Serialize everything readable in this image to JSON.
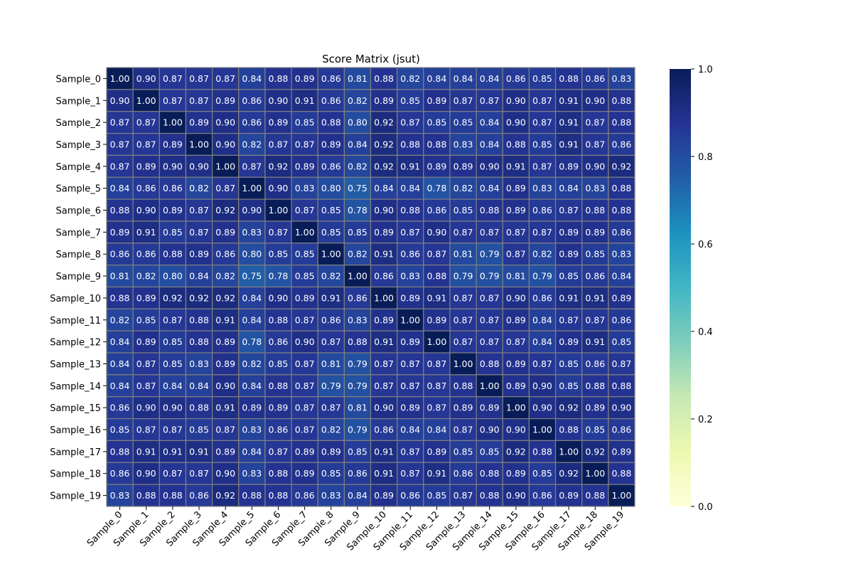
{
  "chart_data": {
    "type": "heatmap",
    "title": "Score Matrix (jsut)",
    "xlabel": "",
    "ylabel": "",
    "rows": [
      "Sample_0",
      "Sample_1",
      "Sample_2",
      "Sample_3",
      "Sample_4",
      "Sample_5",
      "Sample_6",
      "Sample_7",
      "Sample_8",
      "Sample_9",
      "Sample_10",
      "Sample_11",
      "Sample_12",
      "Sample_13",
      "Sample_14",
      "Sample_15",
      "Sample_16",
      "Sample_17",
      "Sample_18",
      "Sample_19"
    ],
    "columns": [
      "Sample_0",
      "Sample_1",
      "Sample_2",
      "Sample_3",
      "Sample_4",
      "Sample_5",
      "Sample_6",
      "Sample_7",
      "Sample_8",
      "Sample_9",
      "Sample_10",
      "Sample_11",
      "Sample_12",
      "Sample_13",
      "Sample_14",
      "Sample_15",
      "Sample_16",
      "Sample_17",
      "Sample_18",
      "Sample_19"
    ],
    "values": [
      [
        1.0,
        0.9,
        0.87,
        0.87,
        0.87,
        0.84,
        0.88,
        0.89,
        0.86,
        0.81,
        0.88,
        0.82,
        0.84,
        0.84,
        0.84,
        0.86,
        0.85,
        0.88,
        0.86,
        0.83
      ],
      [
        0.9,
        1.0,
        0.87,
        0.87,
        0.89,
        0.86,
        0.9,
        0.91,
        0.86,
        0.82,
        0.89,
        0.85,
        0.89,
        0.87,
        0.87,
        0.9,
        0.87,
        0.91,
        0.9,
        0.88
      ],
      [
        0.87,
        0.87,
        1.0,
        0.89,
        0.9,
        0.86,
        0.89,
        0.85,
        0.88,
        0.8,
        0.92,
        0.87,
        0.85,
        0.85,
        0.84,
        0.9,
        0.87,
        0.91,
        0.87,
        0.88
      ],
      [
        0.87,
        0.87,
        0.89,
        1.0,
        0.9,
        0.82,
        0.87,
        0.87,
        0.89,
        0.84,
        0.92,
        0.88,
        0.88,
        0.83,
        0.84,
        0.88,
        0.85,
        0.91,
        0.87,
        0.86
      ],
      [
        0.87,
        0.89,
        0.9,
        0.9,
        1.0,
        0.87,
        0.92,
        0.89,
        0.86,
        0.82,
        0.92,
        0.91,
        0.89,
        0.89,
        0.9,
        0.91,
        0.87,
        0.89,
        0.9,
        0.92
      ],
      [
        0.84,
        0.86,
        0.86,
        0.82,
        0.87,
        1.0,
        0.9,
        0.83,
        0.8,
        0.75,
        0.84,
        0.84,
        0.78,
        0.82,
        0.84,
        0.89,
        0.83,
        0.84,
        0.83,
        0.88
      ],
      [
        0.88,
        0.9,
        0.89,
        0.87,
        0.92,
        0.9,
        1.0,
        0.87,
        0.85,
        0.78,
        0.9,
        0.88,
        0.86,
        0.85,
        0.88,
        0.89,
        0.86,
        0.87,
        0.88,
        0.88
      ],
      [
        0.89,
        0.91,
        0.85,
        0.87,
        0.89,
        0.83,
        0.87,
        1.0,
        0.85,
        0.85,
        0.89,
        0.87,
        0.9,
        0.87,
        0.87,
        0.87,
        0.87,
        0.89,
        0.89,
        0.86
      ],
      [
        0.86,
        0.86,
        0.88,
        0.89,
        0.86,
        0.8,
        0.85,
        0.85,
        1.0,
        0.82,
        0.91,
        0.86,
        0.87,
        0.81,
        0.79,
        0.87,
        0.82,
        0.89,
        0.85,
        0.83
      ],
      [
        0.81,
        0.82,
        0.8,
        0.84,
        0.82,
        0.75,
        0.78,
        0.85,
        0.82,
        1.0,
        0.86,
        0.83,
        0.88,
        0.79,
        0.79,
        0.81,
        0.79,
        0.85,
        0.86,
        0.84
      ],
      [
        0.88,
        0.89,
        0.92,
        0.92,
        0.92,
        0.84,
        0.9,
        0.89,
        0.91,
        0.86,
        1.0,
        0.89,
        0.91,
        0.87,
        0.87,
        0.9,
        0.86,
        0.91,
        0.91,
        0.89
      ],
      [
        0.82,
        0.85,
        0.87,
        0.88,
        0.91,
        0.84,
        0.88,
        0.87,
        0.86,
        0.83,
        0.89,
        1.0,
        0.89,
        0.87,
        0.87,
        0.89,
        0.84,
        0.87,
        0.87,
        0.86
      ],
      [
        0.84,
        0.89,
        0.85,
        0.88,
        0.89,
        0.78,
        0.86,
        0.9,
        0.87,
        0.88,
        0.91,
        0.89,
        1.0,
        0.87,
        0.87,
        0.87,
        0.84,
        0.89,
        0.91,
        0.85
      ],
      [
        0.84,
        0.87,
        0.85,
        0.83,
        0.89,
        0.82,
        0.85,
        0.87,
        0.81,
        0.79,
        0.87,
        0.87,
        0.87,
        1.0,
        0.88,
        0.89,
        0.87,
        0.85,
        0.86,
        0.87
      ],
      [
        0.84,
        0.87,
        0.84,
        0.84,
        0.9,
        0.84,
        0.88,
        0.87,
        0.79,
        0.79,
        0.87,
        0.87,
        0.87,
        0.88,
        1.0,
        0.89,
        0.9,
        0.85,
        0.88,
        0.88
      ],
      [
        0.86,
        0.9,
        0.9,
        0.88,
        0.91,
        0.89,
        0.89,
        0.87,
        0.87,
        0.81,
        0.9,
        0.89,
        0.87,
        0.89,
        0.89,
        1.0,
        0.9,
        0.92,
        0.89,
        0.9
      ],
      [
        0.85,
        0.87,
        0.87,
        0.85,
        0.87,
        0.83,
        0.86,
        0.87,
        0.82,
        0.79,
        0.86,
        0.84,
        0.84,
        0.87,
        0.9,
        0.9,
        1.0,
        0.88,
        0.85,
        0.86
      ],
      [
        0.88,
        0.91,
        0.91,
        0.91,
        0.89,
        0.84,
        0.87,
        0.89,
        0.89,
        0.85,
        0.91,
        0.87,
        0.89,
        0.85,
        0.85,
        0.92,
        0.88,
        1.0,
        0.92,
        0.89
      ],
      [
        0.86,
        0.9,
        0.87,
        0.87,
        0.9,
        0.83,
        0.88,
        0.89,
        0.85,
        0.86,
        0.91,
        0.87,
        0.91,
        0.86,
        0.88,
        0.89,
        0.85,
        0.92,
        1.0,
        0.88
      ],
      [
        0.83,
        0.88,
        0.88,
        0.86,
        0.92,
        0.88,
        0.88,
        0.86,
        0.83,
        0.84,
        0.89,
        0.86,
        0.85,
        0.87,
        0.88,
        0.9,
        0.86,
        0.89,
        0.88,
        1.0
      ]
    ],
    "value_format": "0.00",
    "colormap": "YlGnBu",
    "colorbar": {
      "range": [
        0.0,
        1.0
      ],
      "ticks": [
        0.0,
        0.2,
        0.4,
        0.6,
        0.8,
        1.0
      ],
      "tick_labels": [
        "0.0",
        "0.2",
        "0.4",
        "0.6",
        "0.8",
        "1.0"
      ]
    },
    "cell_border_color": "#808080",
    "annotation_color": "#ffffff",
    "colormap_stops": [
      "#ffffd9",
      "#edf8b1",
      "#c7e9b4",
      "#7fcdbb",
      "#41b6c4",
      "#1d91c0",
      "#225ea8",
      "#253494",
      "#081d58"
    ]
  }
}
